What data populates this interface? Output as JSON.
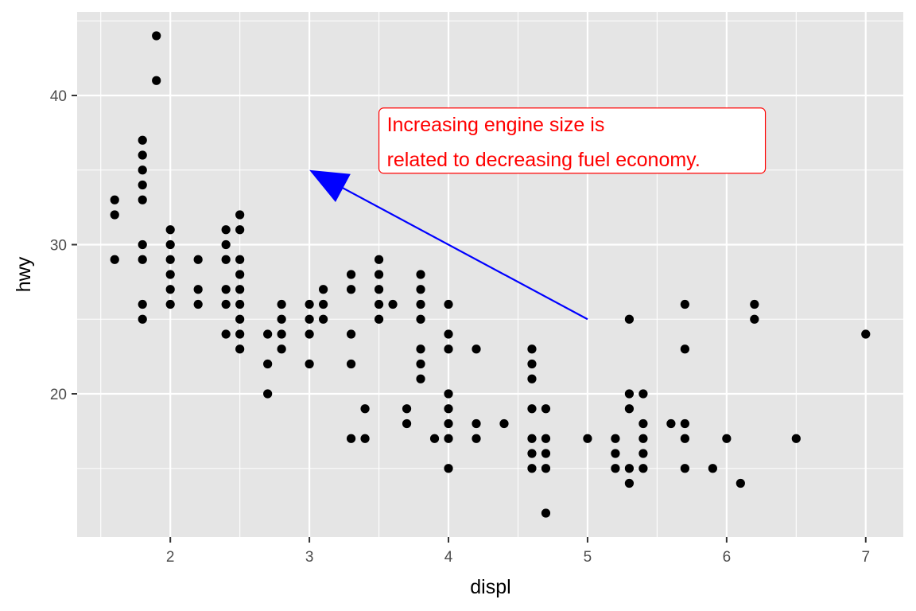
{
  "chart_data": {
    "type": "scatter",
    "title": "",
    "xlabel": "displ",
    "ylabel": "hwy",
    "xlim": [
      1.33,
      7.27
    ],
    "ylim": [
      10.4,
      45.6
    ],
    "x_ticks": [
      2,
      3,
      4,
      5,
      6,
      7
    ],
    "y_ticks": [
      20,
      30,
      40
    ],
    "grid": true,
    "colors": {
      "panel": "#e5e5e5",
      "grid": "#ffffff",
      "points": "#000000",
      "arrow": "#0000ff",
      "annotation_text": "#ff0000",
      "annotation_border": "#ff0000",
      "annotation_fill": "#ffffff"
    },
    "points": [
      [
        1.6,
        33
      ],
      [
        1.6,
        32
      ],
      [
        1.6,
        29
      ],
      [
        1.8,
        37
      ],
      [
        1.8,
        36
      ],
      [
        1.8,
        35
      ],
      [
        1.8,
        34
      ],
      [
        1.8,
        33
      ],
      [
        1.8,
        30
      ],
      [
        1.8,
        29
      ],
      [
        1.8,
        26
      ],
      [
        1.8,
        25
      ],
      [
        1.9,
        44
      ],
      [
        1.9,
        41
      ],
      [
        2.0,
        31
      ],
      [
        2.0,
        30
      ],
      [
        2.0,
        29
      ],
      [
        2.0,
        28
      ],
      [
        2.0,
        27
      ],
      [
        2.0,
        26
      ],
      [
        2.2,
        29
      ],
      [
        2.2,
        27
      ],
      [
        2.2,
        26
      ],
      [
        2.4,
        31
      ],
      [
        2.4,
        30
      ],
      [
        2.4,
        29
      ],
      [
        2.4,
        27
      ],
      [
        2.4,
        26
      ],
      [
        2.4,
        24
      ],
      [
        2.5,
        32
      ],
      [
        2.5,
        31
      ],
      [
        2.5,
        29
      ],
      [
        2.5,
        28
      ],
      [
        2.5,
        27
      ],
      [
        2.5,
        26
      ],
      [
        2.5,
        25
      ],
      [
        2.5,
        24
      ],
      [
        2.5,
        23
      ],
      [
        2.7,
        24
      ],
      [
        2.7,
        22
      ],
      [
        2.7,
        20
      ],
      [
        2.8,
        26
      ],
      [
        2.8,
        25
      ],
      [
        2.8,
        24
      ],
      [
        2.8,
        23
      ],
      [
        3.0,
        26
      ],
      [
        3.0,
        25
      ],
      [
        3.0,
        24
      ],
      [
        3.0,
        22
      ],
      [
        3.1,
        27
      ],
      [
        3.1,
        26
      ],
      [
        3.1,
        25
      ],
      [
        3.3,
        28
      ],
      [
        3.3,
        27
      ],
      [
        3.3,
        24
      ],
      [
        3.3,
        22
      ],
      [
        3.3,
        17
      ],
      [
        3.4,
        19
      ],
      [
        3.4,
        17
      ],
      [
        3.5,
        29
      ],
      [
        3.5,
        28
      ],
      [
        3.5,
        27
      ],
      [
        3.5,
        26
      ],
      [
        3.5,
        25
      ],
      [
        3.6,
        26
      ],
      [
        3.7,
        19
      ],
      [
        3.7,
        18
      ],
      [
        3.8,
        28
      ],
      [
        3.8,
        27
      ],
      [
        3.8,
        26
      ],
      [
        3.8,
        25
      ],
      [
        3.8,
        23
      ],
      [
        3.8,
        22
      ],
      [
        3.8,
        21
      ],
      [
        3.9,
        17
      ],
      [
        4.0,
        26
      ],
      [
        4.0,
        24
      ],
      [
        4.0,
        23
      ],
      [
        4.0,
        20
      ],
      [
        4.0,
        19
      ],
      [
        4.0,
        18
      ],
      [
        4.0,
        17
      ],
      [
        4.0,
        15
      ],
      [
        4.2,
        23
      ],
      [
        4.2,
        18
      ],
      [
        4.2,
        17
      ],
      [
        4.4,
        18
      ],
      [
        4.6,
        23
      ],
      [
        4.6,
        22
      ],
      [
        4.6,
        21
      ],
      [
        4.6,
        19
      ],
      [
        4.6,
        17
      ],
      [
        4.6,
        16
      ],
      [
        4.6,
        15
      ],
      [
        4.7,
        19
      ],
      [
        4.7,
        17
      ],
      [
        4.7,
        16
      ],
      [
        4.7,
        15
      ],
      [
        4.7,
        12
      ],
      [
        5.0,
        17
      ],
      [
        5.2,
        17
      ],
      [
        5.2,
        16
      ],
      [
        5.2,
        15
      ],
      [
        5.3,
        25
      ],
      [
        5.3,
        20
      ],
      [
        5.3,
        19
      ],
      [
        5.3,
        15
      ],
      [
        5.3,
        14
      ],
      [
        5.4,
        20
      ],
      [
        5.4,
        18
      ],
      [
        5.4,
        17
      ],
      [
        5.4,
        16
      ],
      [
        5.4,
        15
      ],
      [
        5.6,
        18
      ],
      [
        5.7,
        26
      ],
      [
        5.7,
        23
      ],
      [
        5.7,
        18
      ],
      [
        5.7,
        17
      ],
      [
        5.7,
        15
      ],
      [
        5.9,
        15
      ],
      [
        6.0,
        17
      ],
      [
        6.1,
        14
      ],
      [
        6.2,
        26
      ],
      [
        6.2,
        25
      ],
      [
        6.5,
        17
      ],
      [
        7.0,
        24
      ]
    ],
    "annotation": {
      "lines": [
        "Increasing engine size is",
        "related to decreasing fuel economy."
      ],
      "x": 3.5,
      "y": 39,
      "arrow": {
        "from": [
          5,
          25
        ],
        "to": [
          3,
          35
        ]
      }
    }
  }
}
